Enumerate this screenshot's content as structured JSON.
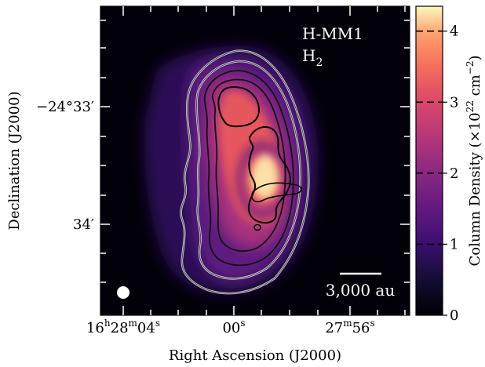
{
  "chart_data": {
    "type": "heatmap",
    "title": "",
    "field": {
      "source": "H-MM1",
      "tracer": "H",
      "tracer_sub": "2"
    },
    "xlabel": "Right Ascension (J2000)",
    "ylabel": "Declination (J2000)",
    "x_ticks": [
      {
        "main": "16",
        "h": "h",
        "mid": "28",
        "m": "m",
        "end": "04",
        "s": "s"
      },
      {
        "main": "00",
        "s": "s"
      },
      {
        "main": "27",
        "m": "m",
        "end": "56",
        "s": "s"
      }
    ],
    "y_ticks": [
      "−24°33′",
      "34′"
    ],
    "scale_bar": "3,000 au",
    "beam_marker": "beam",
    "colorbar": {
      "label": "Column Density",
      "label_unit": "(×10",
      "label_exp1": "22",
      "label_mid": " cm",
      "label_exp2": "−2",
      "label_close": ")",
      "min": 0,
      "max": 4.35,
      "ticks": [
        "0",
        "1",
        "2",
        "3",
        "4"
      ],
      "contour_levels": [
        1,
        2,
        3,
        4
      ],
      "colormap": [
        "#000004",
        "#1d1147",
        "#51127c",
        "#822681",
        "#b73779",
        "#e75263",
        "#fc8961",
        "#fec488",
        "#fcfdbf"
      ]
    },
    "contour_colors": {
      "outer": "#d9d9d9",
      "inner": "#000000"
    },
    "peak_column_density": 4.3
  }
}
